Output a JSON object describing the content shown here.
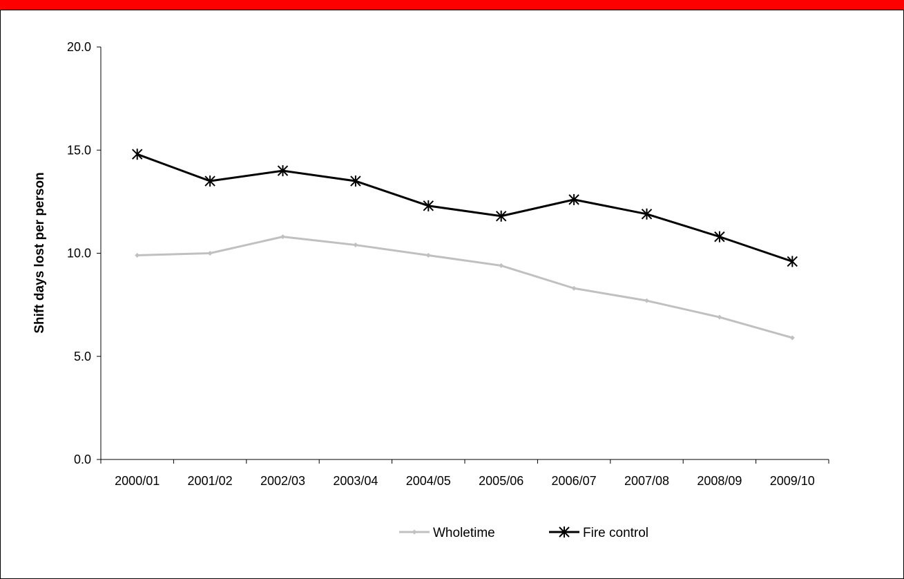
{
  "colors": {
    "header_bar": "#ff0000",
    "wholetime": "#c0c0c0",
    "fire_control": "#000000"
  },
  "chart_data": {
    "type": "line",
    "title": "",
    "xlabel": "",
    "ylabel": "Shift days lost per person",
    "ylim": [
      0,
      20
    ],
    "yticks": [
      "0.0",
      "5.0",
      "10.0",
      "15.0",
      "20.0"
    ],
    "categories": [
      "2000/01",
      "2001/02",
      "2002/03",
      "2003/04",
      "2004/05",
      "2005/06",
      "2006/07",
      "2007/08",
      "2008/09",
      "2009/10"
    ],
    "grid": false,
    "legend_position": "bottom",
    "series": [
      {
        "name": "Wholetime",
        "marker": "diamond",
        "color": "#c0c0c0",
        "values": [
          9.9,
          10.0,
          10.8,
          10.4,
          9.9,
          9.4,
          8.3,
          7.7,
          6.9,
          5.9
        ]
      },
      {
        "name": "Fire control",
        "marker": "star",
        "color": "#000000",
        "values": [
          14.8,
          13.5,
          14.0,
          13.5,
          12.3,
          11.8,
          12.6,
          11.9,
          10.8,
          9.6
        ]
      }
    ]
  }
}
